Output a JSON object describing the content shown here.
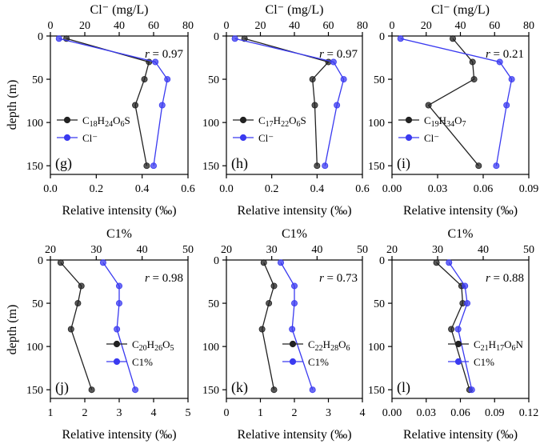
{
  "colors": {
    "black_series": "#222222",
    "blue_series": "#3a3af0",
    "axis": "#000000"
  },
  "y_axis_label": "depth (m)",
  "chart_data": [
    {
      "type": "line",
      "panel": "(g)",
      "r_label": "r",
      "r_value": "= 0.97",
      "bottom_label": "Relative intensity (‰)",
      "bottom_ticks": [
        "0.0",
        "0.2",
        "0.4",
        "0.6"
      ],
      "bottom_lim": [
        0,
        0.6
      ],
      "top_label": "Cl⁻ (mg/L)",
      "top_ticks": [
        "0",
        "20",
        "40",
        "60",
        "80"
      ],
      "top_lim": [
        0,
        80
      ],
      "ylim": [
        0,
        160
      ],
      "y_ticks": [
        "0",
        "50",
        "100",
        "150"
      ],
      "legend_position": "left",
      "series": [
        {
          "name": "C18H24O6S",
          "legend_base": "C",
          "legend_sub": [
            "18",
            "24",
            "6"
          ],
          "legend_mid": [
            "H",
            "O",
            "S"
          ],
          "axis": "bottom",
          "color": "#222222",
          "x": [
            0.07,
            0.43,
            0.41,
            0.37,
            0.42
          ],
          "y": [
            3,
            30,
            50,
            80,
            150
          ]
        },
        {
          "name": "Cl⁻",
          "legend_text": "Cl⁻",
          "axis": "top",
          "color": "#3a3af0",
          "x": [
            5,
            61,
            68,
            65,
            60
          ],
          "y": [
            3,
            30,
            50,
            80,
            150
          ]
        }
      ]
    },
    {
      "type": "line",
      "panel": "(h)",
      "r_label": "r",
      "r_value": "= 0.97",
      "bottom_label": "Relative intensity (‰)",
      "bottom_ticks": [
        "0.0",
        "0.2",
        "0.4",
        "0.6"
      ],
      "bottom_lim": [
        0,
        0.6
      ],
      "top_label": "Cl⁻ (mg/L)",
      "top_ticks": [
        "0",
        "20",
        "40",
        "60",
        "80"
      ],
      "top_lim": [
        0,
        80
      ],
      "ylim": [
        0,
        160
      ],
      "y_ticks": [
        "0",
        "50",
        "100",
        "150"
      ],
      "legend_position": "left",
      "series": [
        {
          "name": "C17H22O6S",
          "legend_base": "C",
          "legend_sub": [
            "17",
            "22",
            "6"
          ],
          "legend_mid": [
            "H",
            "O",
            "S"
          ],
          "axis": "bottom",
          "color": "#222222",
          "x": [
            0.08,
            0.45,
            0.38,
            0.39,
            0.4
          ],
          "y": [
            3,
            30,
            50,
            80,
            150
          ]
        },
        {
          "name": "Cl⁻",
          "legend_text": "Cl⁻",
          "axis": "top",
          "color": "#3a3af0",
          "x": [
            5,
            63,
            69,
            65,
            58
          ],
          "y": [
            3,
            30,
            50,
            80,
            150
          ]
        }
      ]
    },
    {
      "type": "line",
      "panel": "(i)",
      "r_label": "r",
      "r_value": "= 0.21",
      "bottom_label": "Relative intensity (‰)",
      "bottom_ticks": [
        "0.00",
        "0.03",
        "0.06",
        "0.09"
      ],
      "bottom_lim": [
        0,
        0.09
      ],
      "top_label": "Cl⁻ (mg/L)",
      "top_ticks": [
        "0",
        "20",
        "40",
        "60",
        "80"
      ],
      "top_lim": [
        0,
        80
      ],
      "ylim": [
        0,
        160
      ],
      "y_ticks": [
        "0",
        "50",
        "100",
        "150"
      ],
      "legend_position": "left",
      "series": [
        {
          "name": "C19H34O7",
          "legend_base": "C",
          "legend_sub": [
            "19",
            "34",
            "7"
          ],
          "legend_mid": [
            "H",
            "O",
            ""
          ],
          "axis": "bottom",
          "color": "#222222",
          "x": [
            0.04,
            0.053,
            0.054,
            0.024,
            0.057
          ],
          "y": [
            3,
            30,
            50,
            80,
            150
          ]
        },
        {
          "name": "Cl⁻",
          "legend_text": "Cl⁻",
          "axis": "top",
          "color": "#3a3af0",
          "x": [
            5,
            63,
            70,
            67,
            61
          ],
          "y": [
            3,
            30,
            50,
            80,
            150
          ]
        }
      ]
    },
    {
      "type": "line",
      "panel": "(j)",
      "r_label": "r",
      "r_value": "= 0.98",
      "bottom_label": "Relative intensity (‰)",
      "bottom_ticks": [
        "1",
        "2",
        "3",
        "4",
        "5"
      ],
      "bottom_lim": [
        1,
        5
      ],
      "top_label": "C1%",
      "top_ticks": [
        "20",
        "30",
        "40",
        "50"
      ],
      "top_lim": [
        20,
        50
      ],
      "ylim": [
        0,
        160
      ],
      "y_ticks": [
        "0",
        "50",
        "100",
        "150"
      ],
      "legend_position": "right",
      "series": [
        {
          "name": "C20H26O5",
          "legend_base": "C",
          "legend_sub": [
            "20",
            "26",
            "5"
          ],
          "legend_mid": [
            "H",
            "O",
            ""
          ],
          "axis": "bottom",
          "color": "#222222",
          "x": [
            1.3,
            1.9,
            1.8,
            1.6,
            2.2
          ],
          "y": [
            3,
            30,
            50,
            80,
            150
          ]
        },
        {
          "name": "C1%",
          "legend_text": "C1%",
          "axis": "top",
          "color": "#3a3af0",
          "x": [
            31.5,
            35.0,
            35.0,
            34.5,
            38.5
          ],
          "y": [
            3,
            30,
            50,
            80,
            150
          ]
        }
      ]
    },
    {
      "type": "line",
      "panel": "(k)",
      "r_label": "r",
      "r_value": "= 0.73",
      "bottom_label": "Relative intensity (‰)",
      "bottom_ticks": [
        "0",
        "1",
        "2",
        "3",
        "4"
      ],
      "bottom_lim": [
        0,
        4
      ],
      "top_label": "C1%",
      "top_ticks": [
        "20",
        "30",
        "40",
        "50"
      ],
      "top_lim": [
        20,
        50
      ],
      "ylim": [
        0,
        160
      ],
      "y_ticks": [
        "0",
        "50",
        "100",
        "150"
      ],
      "legend_position": "right",
      "series": [
        {
          "name": "C22H28O6",
          "legend_base": "C",
          "legend_sub": [
            "22",
            "28",
            "6"
          ],
          "legend_mid": [
            "H",
            "O",
            ""
          ],
          "axis": "bottom",
          "color": "#222222",
          "x": [
            1.1,
            1.4,
            1.25,
            1.05,
            1.4
          ],
          "y": [
            3,
            30,
            50,
            80,
            150
          ]
        },
        {
          "name": "C1%",
          "legend_text": "C1%",
          "axis": "top",
          "color": "#3a3af0",
          "x": [
            32.0,
            35.0,
            35.0,
            34.5,
            39.0
          ],
          "y": [
            3,
            30,
            50,
            80,
            150
          ]
        }
      ]
    },
    {
      "type": "line",
      "panel": "(l)",
      "r_label": "r",
      "r_value": "= 0.88",
      "bottom_label": "Relative intensity (‰)",
      "bottom_ticks": [
        "0.00",
        "0.03",
        "0.06",
        "0.09",
        "0.12"
      ],
      "bottom_lim": [
        0,
        0.12
      ],
      "top_label": "C1%",
      "top_ticks": [
        "20",
        "30",
        "40",
        "50"
      ],
      "top_lim": [
        20,
        50
      ],
      "ylim": [
        0,
        160
      ],
      "y_ticks": [
        "0",
        "50",
        "100",
        "150"
      ],
      "legend_position": "right",
      "series": [
        {
          "name": "C21H17O6N",
          "legend_base": "C",
          "legend_sub": [
            "21",
            "17",
            "6"
          ],
          "legend_mid": [
            "H",
            "O",
            "N"
          ],
          "axis": "bottom",
          "color": "#222222",
          "x": [
            0.039,
            0.061,
            0.062,
            0.052,
            0.068
          ],
          "y": [
            3,
            30,
            50,
            80,
            150
          ]
        },
        {
          "name": "C1%",
          "legend_text": "C1%",
          "axis": "top",
          "color": "#3a3af0",
          "x": [
            32.5,
            36.0,
            36.5,
            34.5,
            37.5
          ],
          "y": [
            3,
            30,
            50,
            80,
            150
          ]
        }
      ]
    }
  ]
}
